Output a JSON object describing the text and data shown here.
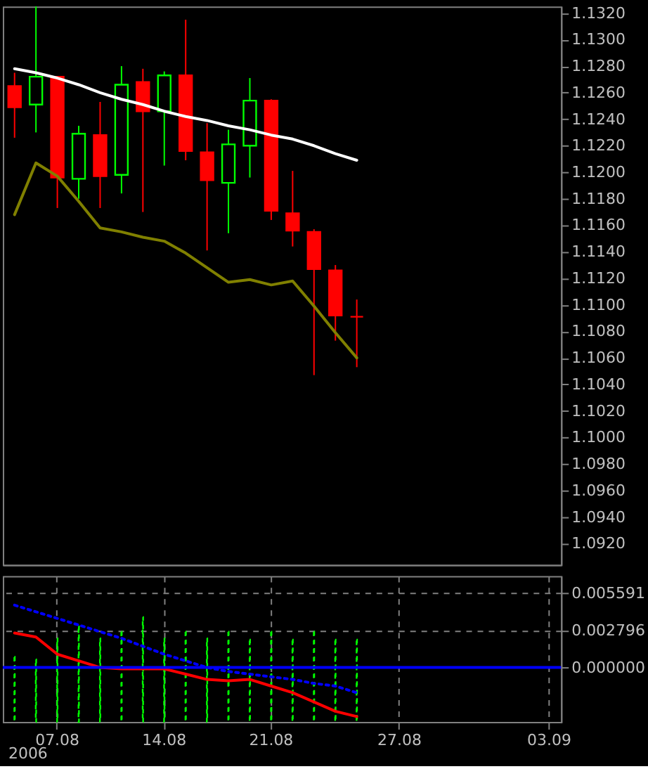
{
  "chart_data": [
    {
      "type": "candlestick",
      "categories": [
        null,
        null,
        "07.08",
        null,
        null,
        null,
        null,
        "14.08",
        null,
        null,
        null,
        null,
        "21.08",
        null,
        null,
        null,
        null,
        null,
        "27.08",
        null,
        null,
        null,
        null,
        null,
        null,
        "03.09"
      ],
      "ohlc": [
        [
          1.1265,
          1.1275,
          1.1226,
          1.1249
        ],
        [
          1.1251,
          1.1325,
          1.123,
          1.1272
        ],
        [
          1.1272,
          1.1272,
          1.1173,
          1.1196
        ],
        [
          1.1195,
          1.1235,
          1.118,
          1.1229
        ],
        [
          1.1228,
          1.1253,
          1.1173,
          1.1197
        ],
        [
          1.1198,
          1.128,
          1.1184,
          1.1266
        ],
        [
          1.1268,
          1.1278,
          1.117,
          1.1246
        ],
        [
          1.1246,
          1.1276,
          1.1205,
          1.1273
        ],
        [
          1.1273,
          1.1315,
          1.1209,
          1.1216
        ],
        [
          1.1215,
          1.1237,
          1.1141,
          1.1194
        ],
        [
          1.1192,
          1.1232,
          1.1154,
          1.1221
        ],
        [
          1.122,
          1.1271,
          1.1196,
          1.1254
        ],
        [
          1.1254,
          1.1255,
          1.1164,
          1.1171
        ],
        [
          1.1169,
          1.1201,
          1.1144,
          1.1156
        ],
        [
          1.1155,
          1.1157,
          1.1047,
          1.1127
        ],
        [
          1.1126,
          1.113,
          1.1073,
          1.1092
        ],
        [
          1.1091,
          1.1104,
          1.1053,
          1.1091
        ],
        null,
        null,
        null,
        null,
        null,
        null,
        null,
        null,
        null
      ],
      "colors": [
        "#ff0000",
        "#00ff00",
        "#ff0000",
        "#00ff00",
        "#ff0000",
        "#00ff00",
        "#ff0000",
        "#00ff00",
        "#ff0000",
        "#ff0000",
        "#00ff00",
        "#00ff00",
        "#ff0000",
        "#ff0000",
        "#ff0000",
        "#ff0000",
        "#ff0000",
        null,
        null,
        null,
        null,
        null,
        null,
        null,
        null,
        null
      ],
      "series": [
        {
          "type": "line",
          "color": "#ffffff",
          "values": [
            1.1278,
            1.1275,
            1.1271,
            1.1266,
            1.126,
            1.1255,
            1.1251,
            1.1246,
            1.1242,
            1.1239,
            1.1235,
            1.1232,
            1.1228,
            1.1225,
            1.122,
            1.1214,
            1.1209,
            null,
            null,
            null,
            null,
            null,
            null,
            null,
            null,
            null
          ]
        },
        {
          "type": "line",
          "color": "#808000",
          "values": [
            1.1168,
            1.1207,
            1.1197,
            1.1178,
            1.1158,
            1.1155,
            1.1151,
            1.1148,
            1.1139,
            1.1128,
            1.1117,
            1.1119,
            1.1115,
            1.1118,
            1.1099,
            1.1079,
            1.106,
            null,
            null,
            null,
            null,
            null,
            null,
            null,
            null,
            null
          ]
        }
      ],
      "ylim": [
        1.0904,
        1.1325
      ],
      "yticks": [
        {
          "value": 1.092,
          "label": "1.0920"
        },
        {
          "value": 1.094,
          "label": "1.0940"
        },
        {
          "value": 1.096,
          "label": "1.0960"
        },
        {
          "value": 1.098,
          "label": "1.0980"
        },
        {
          "value": 1.1,
          "label": "1.1000"
        },
        {
          "value": 1.102,
          "label": "1.1020"
        },
        {
          "value": 1.104,
          "label": "1.1040"
        },
        {
          "value": 1.106,
          "label": "1.1060"
        },
        {
          "value": 1.108,
          "label": "1.1080"
        },
        {
          "value": 1.11,
          "label": "1.1100"
        },
        {
          "value": 1.112,
          "label": "1.1120"
        },
        {
          "value": 1.114,
          "label": "1.1140"
        },
        {
          "value": 1.116,
          "label": "1.1160"
        },
        {
          "value": 1.118,
          "label": "1.1180"
        },
        {
          "value": 1.12,
          "label": "1.1200"
        },
        {
          "value": 1.122,
          "label": "1.1220"
        },
        {
          "value": 1.124,
          "label": "1.1240"
        },
        {
          "value": 1.126,
          "label": "1.1260"
        },
        {
          "value": 1.128,
          "label": "1.1280"
        },
        {
          "value": 1.13,
          "label": "1.1300"
        },
        {
          "value": 1.132,
          "label": "1.1320"
        }
      ],
      "tick_labels": "y"
    },
    {
      "type": "line",
      "categories": [
        null,
        null,
        "07.08",
        null,
        null,
        null,
        null,
        "14.08",
        null,
        null,
        null,
        null,
        "21.08",
        null,
        null,
        null,
        null,
        null,
        "27.08",
        null,
        null,
        null,
        null,
        null,
        null,
        "03.09"
      ],
      "series": [
        {
          "type": "bar",
          "color": "#00ff00",
          "line_style": "dashed",
          "base": [
            -0.0041,
            -0.0041,
            -0.0041,
            -0.0041,
            -0.0041,
            -0.0041,
            -0.0041,
            -0.0041,
            -0.0041,
            -0.0041,
            -0.0041,
            -0.0041,
            -0.0041,
            -0.0041,
            -0.0041,
            -0.0041,
            -0.0041,
            null,
            null,
            null,
            null,
            null,
            null,
            null,
            null,
            null
          ],
          "values": [
            0.0049,
            0.0047,
            0.0063,
            0.0072,
            0.0063,
            0.0068,
            0.0079,
            0.0063,
            0.0068,
            0.0063,
            0.0068,
            0.0062,
            0.0068,
            0.0062,
            0.0068,
            0.0062,
            0.0062,
            null,
            null,
            null,
            null,
            null,
            null,
            null,
            null,
            null
          ]
        },
        {
          "type": "line",
          "color": "#ff0000",
          "line_style": "solid",
          "values": [
            0.0026,
            0.0023,
            0.001,
            0.0005,
            0.0,
            -0.0001,
            -0.0001,
            -0.0001,
            -0.0005,
            -0.0009,
            -0.001,
            -0.0009,
            -0.0014,
            -0.0019,
            -0.0026,
            -0.0033,
            -0.0037,
            null,
            null,
            null,
            null,
            null,
            null,
            null,
            null,
            null
          ]
        },
        {
          "type": "line",
          "color": "#0000ff",
          "line_style": "dotted",
          "values": [
            0.0047,
            0.0042,
            0.0037,
            0.0032,
            0.0027,
            0.0022,
            0.0016,
            0.001,
            0.0005,
            0.0,
            -0.0003,
            -0.0005,
            -0.0007,
            -0.0009,
            -0.0012,
            -0.0014,
            -0.0019,
            null,
            null,
            null,
            null,
            null,
            null,
            null,
            null,
            null
          ]
        }
      ],
      "ref_lines": [
        {
          "axis": "y",
          "value": 0,
          "color": "#0000ff"
        }
      ],
      "ylim": [
        -0.0041,
        0.0069
      ],
      "yticks": [
        0.005591,
        0.002796,
        {
          "value": 0,
          "label": "0.000000"
        }
      ],
      "grid": true,
      "annotations": [
        "2006"
      ]
    }
  ]
}
